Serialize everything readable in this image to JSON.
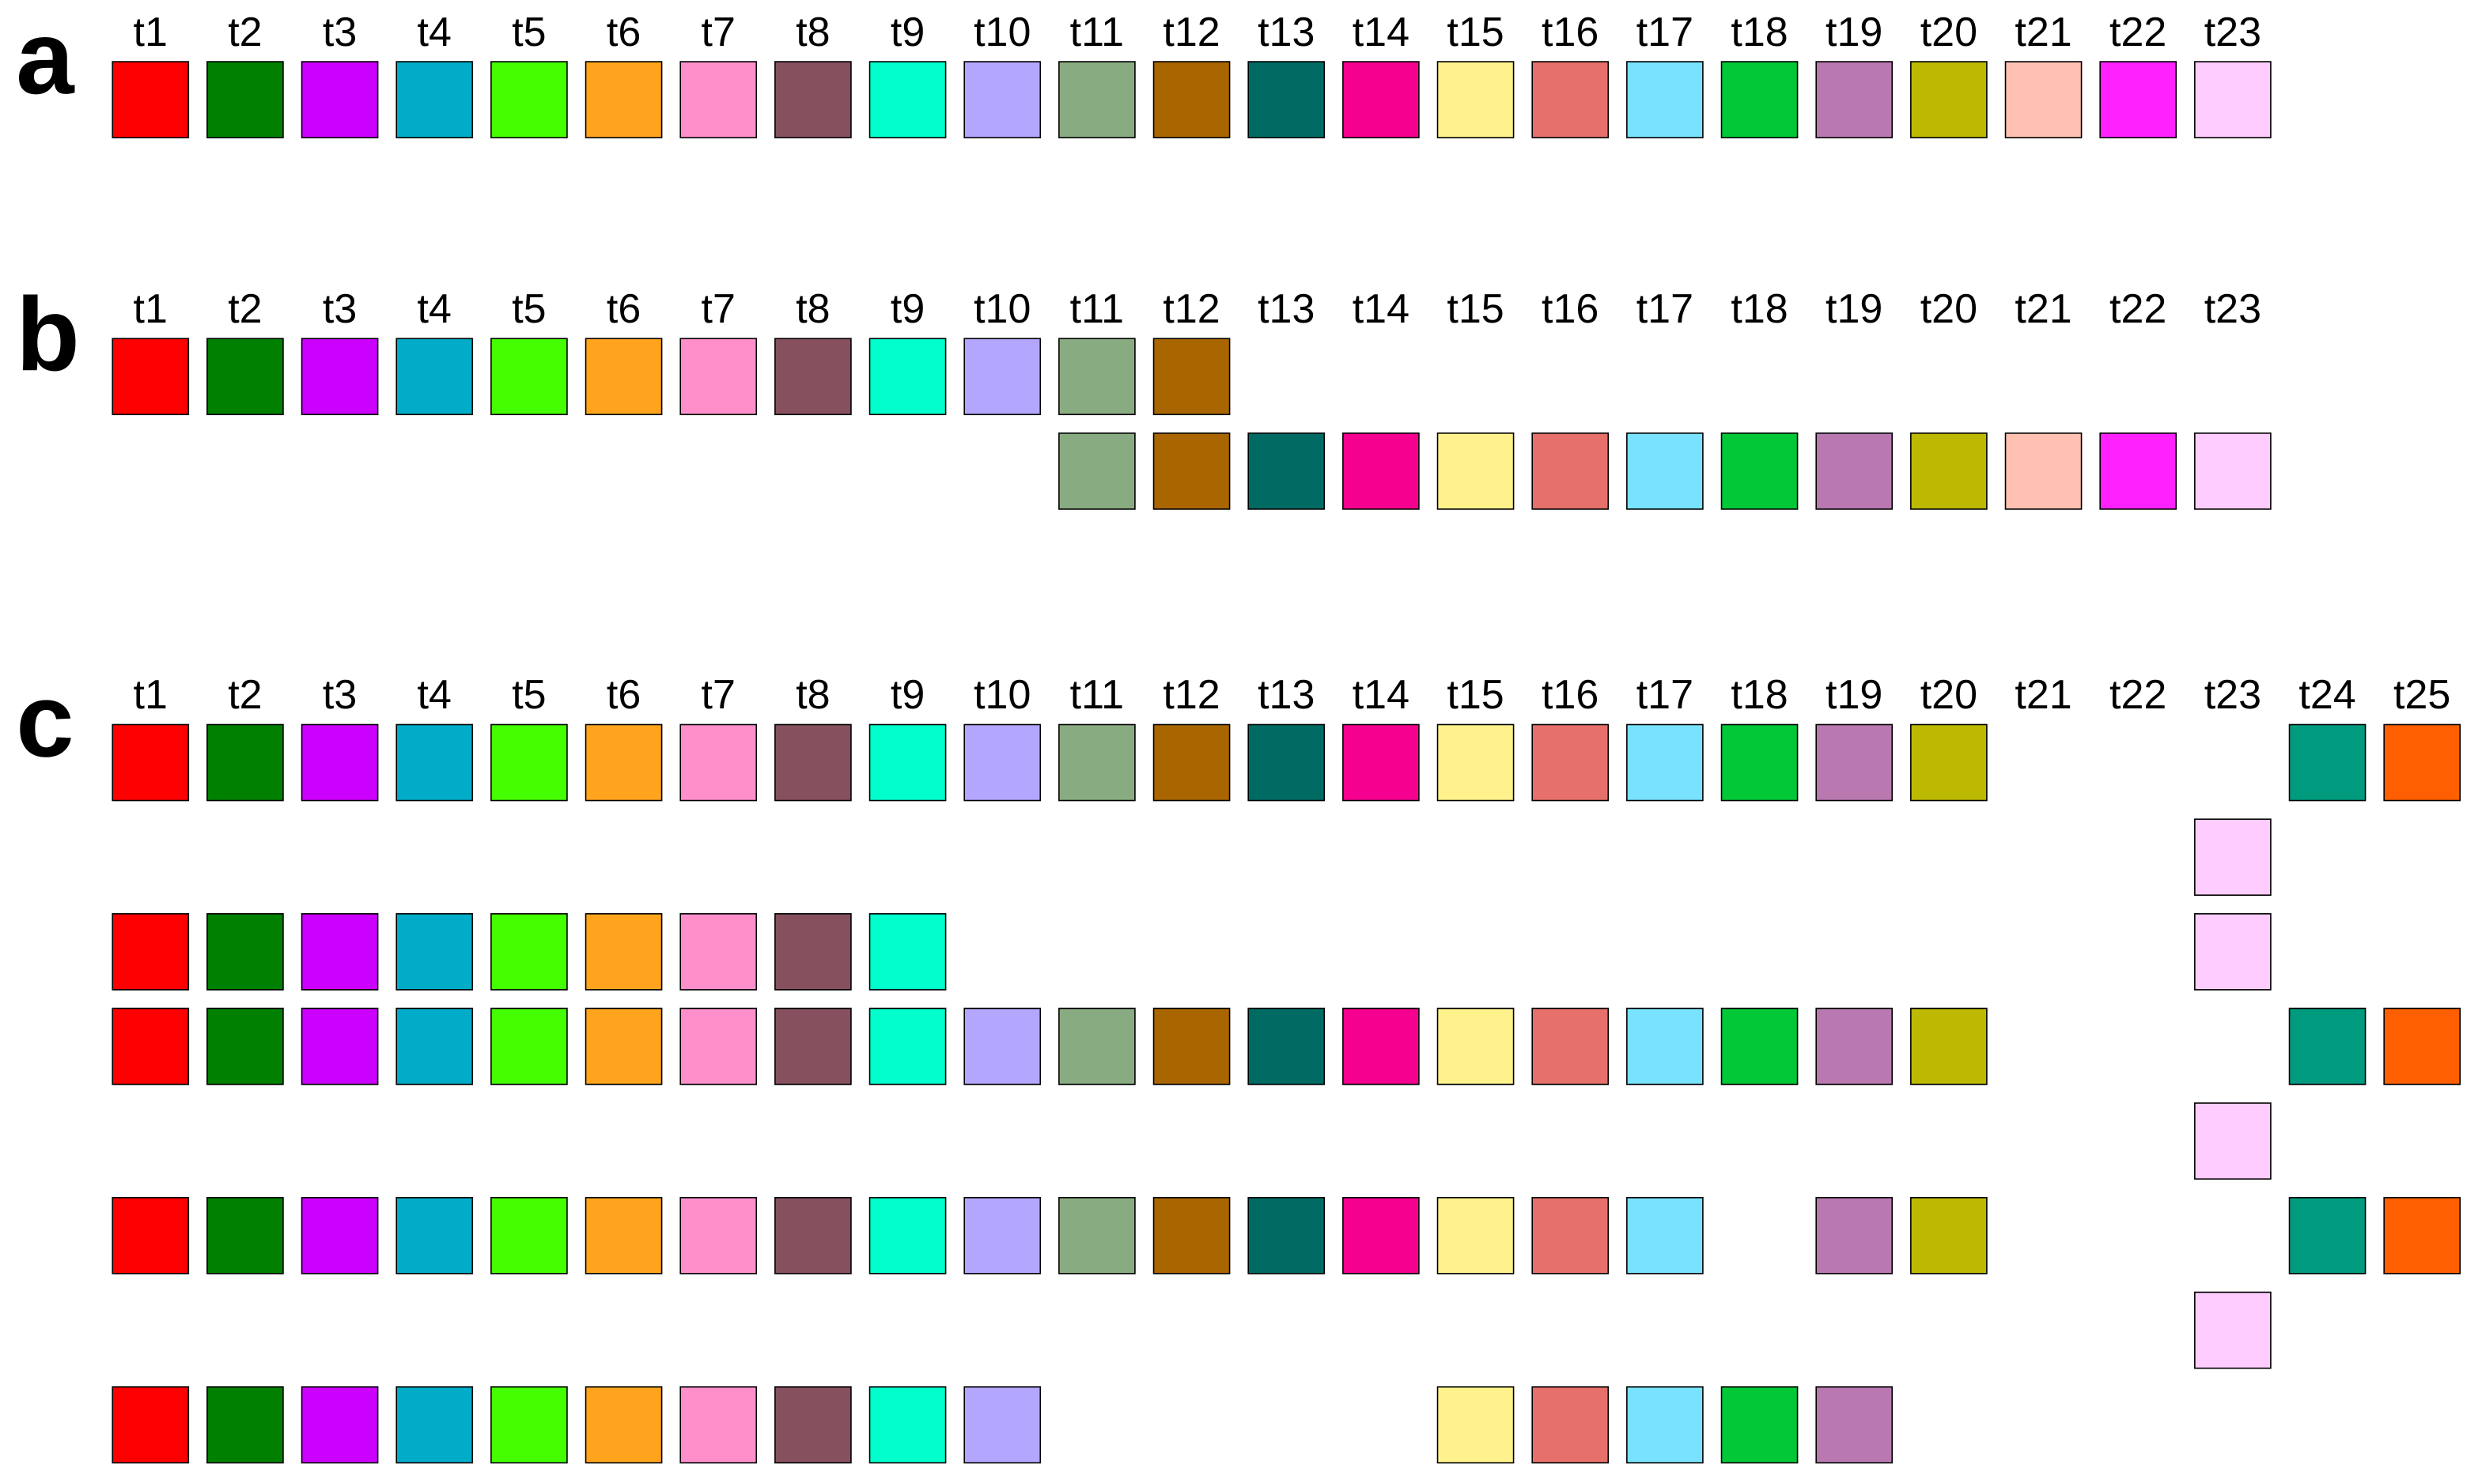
{
  "panels": [
    {
      "label": "a",
      "times": [
        "t1",
        "t2",
        "t3",
        "t4",
        "t5",
        "t6",
        "t7",
        "t8",
        "t9",
        "t10",
        "t11",
        "t12",
        "t13",
        "t14",
        "t15",
        "t16",
        "t17",
        "t18",
        "t19",
        "t20",
        "t21",
        "t22",
        "t23"
      ],
      "rows": [
        [
          "#ff0000",
          "#008000",
          "#cc00ff",
          "#00acc8",
          "#44ff00",
          "#ffa41c",
          "#ff8fcb",
          "#87505f",
          "#00ffcc",
          "#b3a6ff",
          "#89ab81",
          "#a86500",
          "#006b63",
          "#f5008f",
          "#fff28c",
          "#e6706a",
          "#78e2ff",
          "#00c837",
          "#b978b0",
          "#bcb900",
          "#ffc1b1",
          "#ff22ff",
          "#ffccff"
        ]
      ]
    },
    {
      "label": "b",
      "times": [
        "t1",
        "t2",
        "t3",
        "t4",
        "t5",
        "t6",
        "t7",
        "t8",
        "t9",
        "t10",
        "t11",
        "t12",
        "t13",
        "t14",
        "t15",
        "t16",
        "t17",
        "t18",
        "t19",
        "t20",
        "t21",
        "t22",
        "t23"
      ],
      "rows": [
        [
          "#ff0000",
          "#008000",
          "#cc00ff",
          "#00acc8",
          "#44ff00",
          "#ffa41c",
          "#ff8fcb",
          "#87505f",
          "#00ffcc",
          "#b3a6ff",
          "#89ab81",
          "#a86500",
          null,
          null,
          null,
          null,
          null,
          null,
          null,
          null,
          null,
          null,
          null
        ],
        [
          null,
          null,
          null,
          null,
          null,
          null,
          null,
          null,
          null,
          null,
          "#89ab81",
          "#a86500",
          "#006b63",
          "#f5008f",
          "#fff28c",
          "#e6706a",
          "#78e2ff",
          "#00c837",
          "#b978b0",
          "#bcb900",
          "#ffc1b1",
          "#ff22ff",
          "#ffccff"
        ]
      ]
    },
    {
      "label": "c",
      "times": [
        "t1",
        "t2",
        "t3",
        "t4",
        "t5",
        "t6",
        "t7",
        "t8",
        "t9",
        "t10",
        "t11",
        "t12",
        "t13",
        "t14",
        "t15",
        "t16",
        "t17",
        "t18",
        "t19",
        "t20",
        "t21",
        "t22",
        "t23",
        "t24",
        "t25"
      ],
      "rows": [
        [
          "#ff0000",
          "#008000",
          "#cc00ff",
          "#00acc8",
          "#44ff00",
          "#ffa41c",
          "#ff8fcb",
          "#87505f",
          "#00ffcc",
          "#b3a6ff",
          "#89ab81",
          "#a86500",
          "#006b63",
          "#f5008f",
          "#fff28c",
          "#e6706a",
          "#78e2ff",
          "#00c837",
          "#b978b0",
          "#bcb900",
          null,
          null,
          null,
          "#009b7f",
          "#ff5f00"
        ],
        [
          null,
          null,
          null,
          null,
          null,
          null,
          null,
          null,
          null,
          null,
          null,
          null,
          null,
          null,
          null,
          null,
          null,
          null,
          null,
          null,
          null,
          null,
          "#ffccff",
          null,
          null
        ],
        [
          "#ff0000",
          "#008000",
          "#cc00ff",
          "#00acc8",
          "#44ff00",
          "#ffa41c",
          "#ff8fcb",
          "#87505f",
          "#00ffcc",
          null,
          null,
          null,
          null,
          null,
          null,
          null,
          null,
          null,
          null,
          null,
          null,
          null,
          "#ffccff",
          null,
          null
        ],
        [
          "#ff0000",
          "#008000",
          "#cc00ff",
          "#00acc8",
          "#44ff00",
          "#ffa41c",
          "#ff8fcb",
          "#87505f",
          "#00ffcc",
          "#b3a6ff",
          "#89ab81",
          "#a86500",
          "#006b63",
          "#f5008f",
          "#fff28c",
          "#e6706a",
          "#78e2ff",
          "#00c837",
          "#b978b0",
          "#bcb900",
          null,
          null,
          null,
          "#009b7f",
          "#ff5f00"
        ],
        [
          null,
          null,
          null,
          null,
          null,
          null,
          null,
          null,
          null,
          null,
          null,
          null,
          null,
          null,
          null,
          null,
          null,
          null,
          null,
          null,
          null,
          null,
          "#ffccff",
          null,
          null
        ],
        [
          "#ff0000",
          "#008000",
          "#cc00ff",
          "#00acc8",
          "#44ff00",
          "#ffa41c",
          "#ff8fcb",
          "#87505f",
          "#00ffcc",
          "#b3a6ff",
          "#89ab81",
          "#a86500",
          "#006b63",
          "#f5008f",
          "#fff28c",
          "#e6706a",
          "#78e2ff",
          null,
          "#b978b0",
          "#bcb900",
          null,
          null,
          null,
          "#009b7f",
          "#ff5f00"
        ],
        [
          null,
          null,
          null,
          null,
          null,
          null,
          null,
          null,
          null,
          null,
          null,
          null,
          null,
          null,
          null,
          null,
          null,
          null,
          null,
          null,
          null,
          null,
          "#ffccff",
          null,
          null
        ],
        [
          "#ff0000",
          "#008000",
          "#cc00ff",
          "#00acc8",
          "#44ff00",
          "#ffa41c",
          "#ff8fcb",
          "#87505f",
          "#00ffcc",
          "#b3a6ff",
          null,
          null,
          null,
          null,
          "#fff28c",
          "#e6706a",
          "#78e2ff",
          "#00c837",
          "#b978b0",
          null,
          null,
          null,
          null,
          null,
          null
        ]
      ]
    }
  ]
}
